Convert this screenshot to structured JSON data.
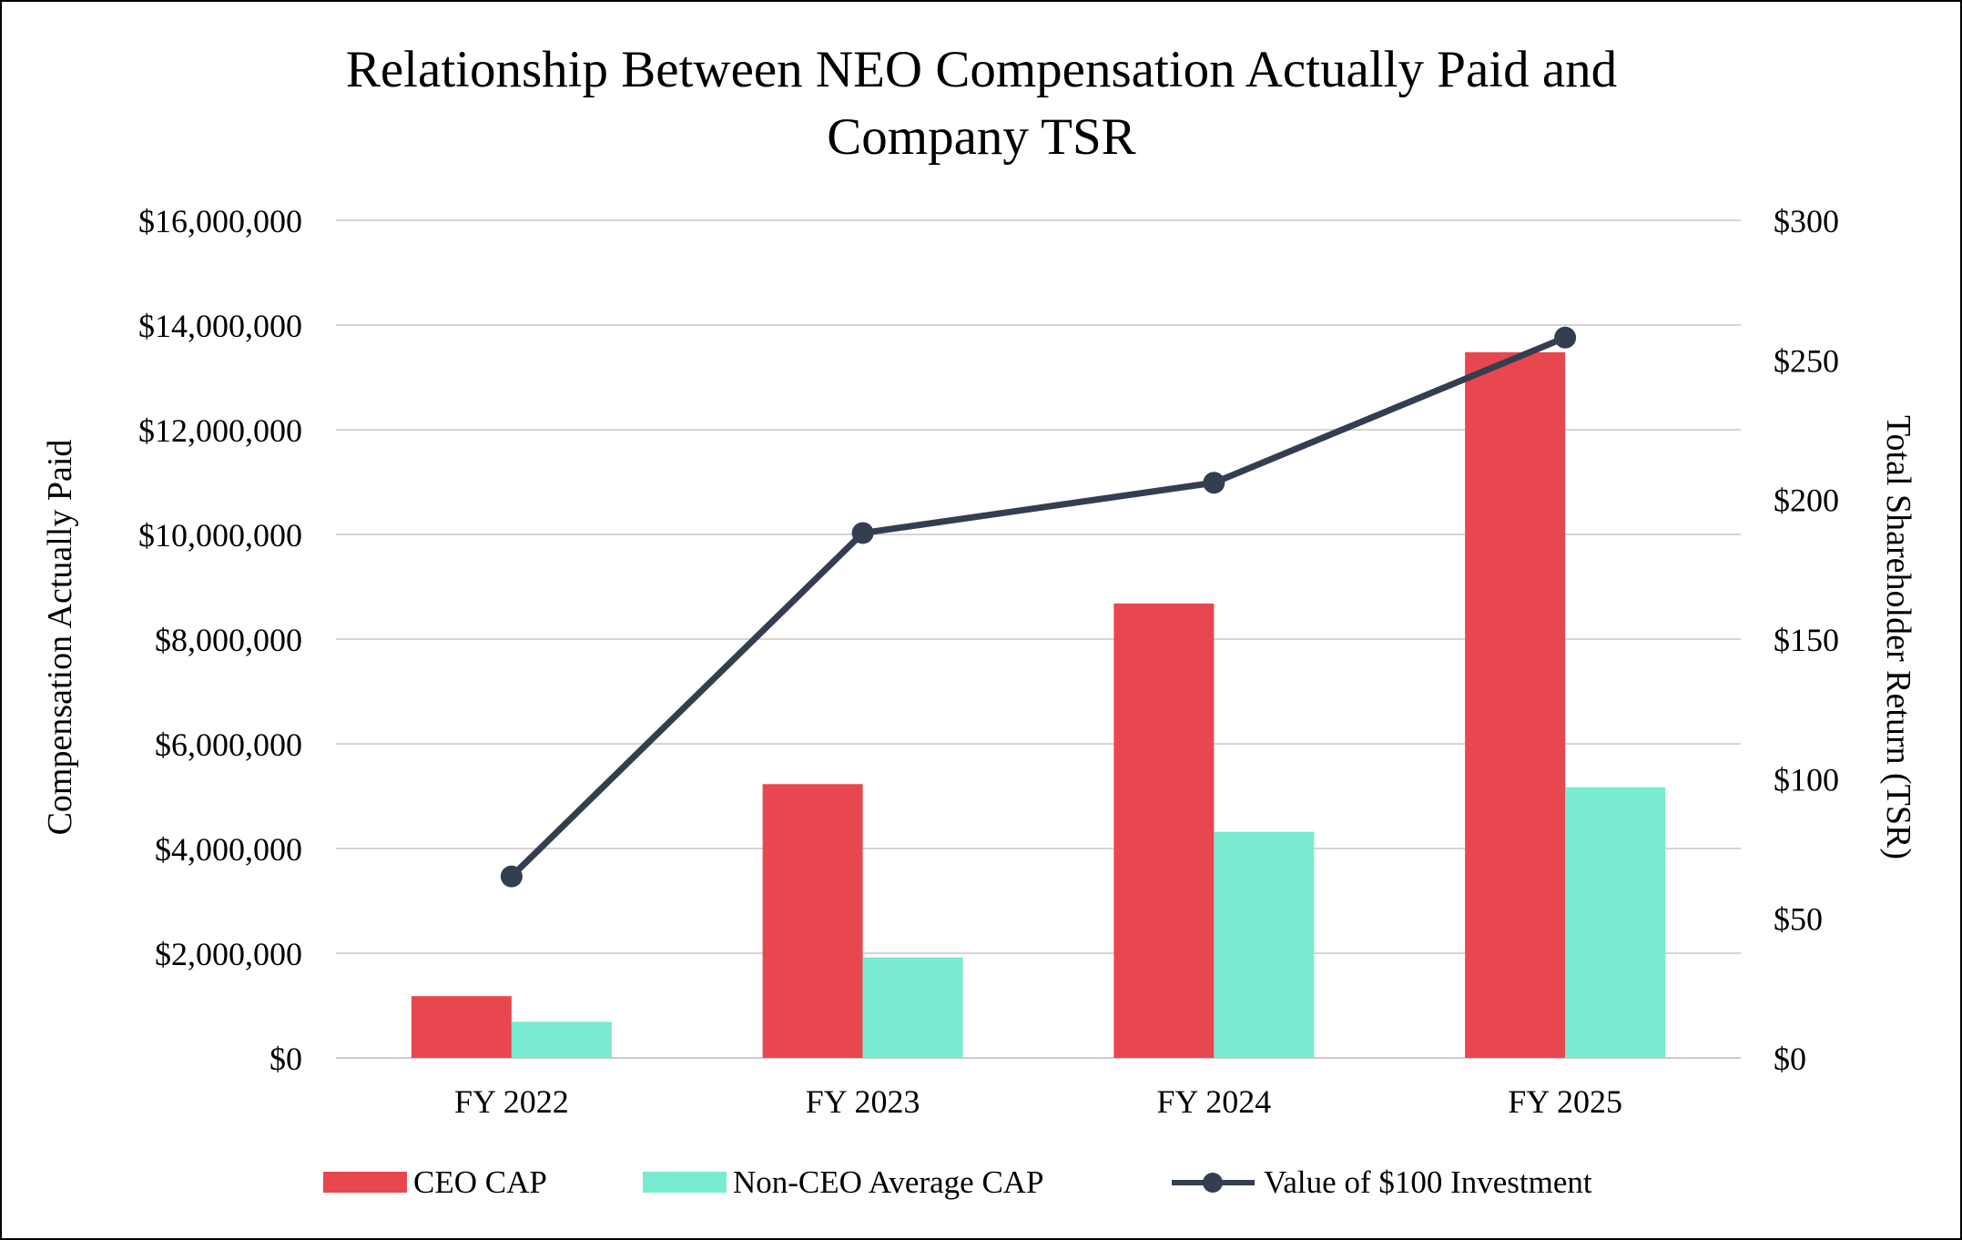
{
  "chart_data": {
    "type": "bar+line",
    "title_lines": [
      "Relationship Between NEO Compensation Actually Paid and",
      "Company TSR"
    ],
    "categories": [
      "FY 2022",
      "FY 2023",
      "FY 2024",
      "FY 2025"
    ],
    "series": [
      {
        "name": "CEO CAP",
        "kind": "bar",
        "axis": "left",
        "color": "#e8474f",
        "values": [
          1180000,
          5230000,
          8680000,
          13480000
        ]
      },
      {
        "name": "Non-CEO Average CAP",
        "kind": "bar",
        "axis": "left",
        "color": "#79ebd0",
        "values": [
          690000,
          1920000,
          4320000,
          5170000
        ]
      },
      {
        "name": "Value of $100 Investment",
        "kind": "line",
        "axis": "right",
        "color": "#333f50",
        "values": [
          65,
          188,
          206,
          258
        ]
      }
    ],
    "left_axis": {
      "label": "Compensation Actually Paid",
      "range": [
        0,
        16000000
      ],
      "ticks": [
        0,
        2000000,
        4000000,
        6000000,
        8000000,
        10000000,
        12000000,
        14000000,
        16000000
      ],
      "tick_labels": [
        "$0",
        "$2,000,000",
        "$4,000,000",
        "$6,000,000",
        "$8,000,000",
        "$10,000,000",
        "$12,000,000",
        "$14,000,000",
        "$16,000,000"
      ]
    },
    "right_axis": {
      "label": "Total Shareholder Return (TSR)",
      "range": [
        0,
        300
      ],
      "ticks": [
        0,
        50,
        100,
        150,
        200,
        250,
        300
      ],
      "tick_labels": [
        "$0",
        "$50",
        "$100",
        "$150",
        "$200",
        "$250",
        "$300"
      ]
    },
    "grid": true,
    "gridline_color": "#d9d2d6",
    "legend_position": "bottom"
  }
}
